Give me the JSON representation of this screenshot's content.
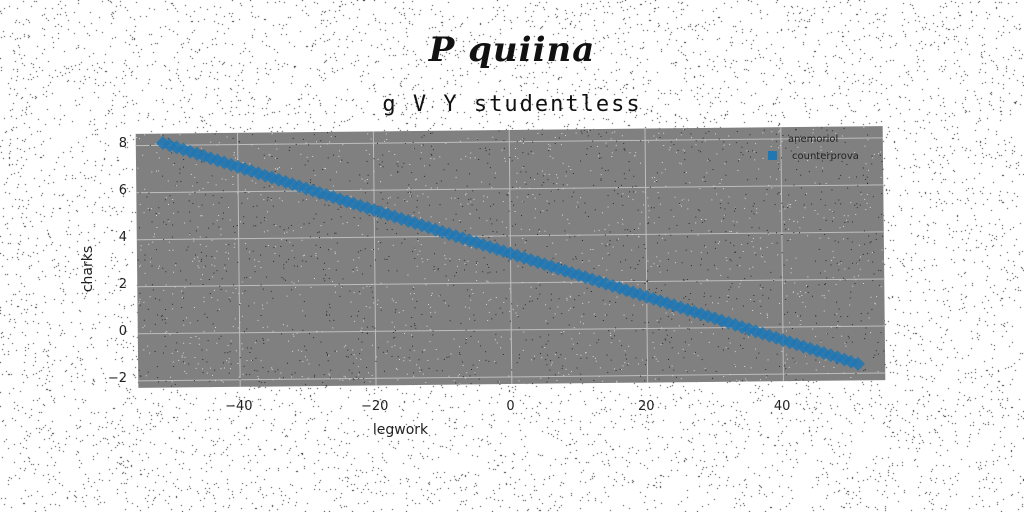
{
  "header": {
    "title": "P quiina",
    "subtitle": "g V Y studentless"
  },
  "colors": {
    "plot_background": "#808080",
    "grid": "#bdbdbd",
    "series": "#1f77b4"
  },
  "chart_data": {
    "type": "scatter",
    "title": "g V Y studentless",
    "xlabel": "legwork",
    "ylabel": "charks",
    "xlim": [
      -55,
      55
    ],
    "ylim": [
      -2.3,
      8.5
    ],
    "xticks": [
      -40,
      -20,
      0,
      20,
      40
    ],
    "yticks": [
      -2,
      0,
      2,
      4,
      6,
      8
    ],
    "xtick_labels": [
      "−40",
      "−20",
      "0",
      "20",
      "40"
    ],
    "ytick_labels": [
      "−2",
      "0",
      "2",
      "4",
      "6",
      "8"
    ],
    "grid": true,
    "legend": {
      "title": "anemoriol",
      "position": "top-right"
    },
    "series": [
      {
        "name": "counterprova",
        "marker": "diamond",
        "trend": {
          "x_start": -51,
          "y_start": 8.1,
          "x_end": 51,
          "y_end": -1.6,
          "step": 1
        }
      }
    ]
  }
}
